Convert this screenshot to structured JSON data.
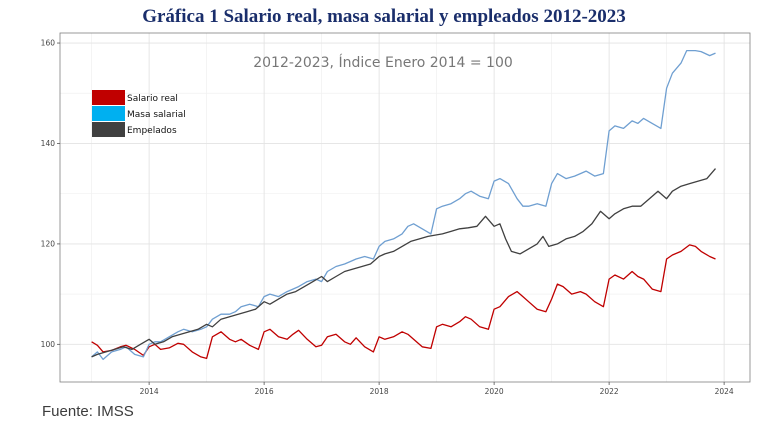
{
  "title": "Gráfica 1 Salario real, masa salarial y empleados 2012-2023",
  "source": "Fuente: IMSS",
  "chart_data": {
    "type": "line",
    "subtitle": "2012-2023, Índice Enero 2014 = 100",
    "xlabel": "",
    "ylabel": "",
    "xlim": [
      2012.45,
      2024.45
    ],
    "ylim": [
      92.5,
      162
    ],
    "x_ticks": [
      2014,
      2016,
      2018,
      2020,
      2022,
      2024
    ],
    "y_ticks": [
      100,
      120,
      140,
      160
    ],
    "grid": true,
    "legend_position": "top-left",
    "series": [
      {
        "name": "Salario real",
        "color": "#c00000",
        "points": [
          [
            2013.0,
            100.5
          ],
          [
            2013.1,
            99.8
          ],
          [
            2013.2,
            98.5
          ],
          [
            2013.35,
            98.8
          ],
          [
            2013.5,
            99.5
          ],
          [
            2013.6,
            99.8
          ],
          [
            2013.75,
            99.0
          ],
          [
            2013.9,
            97.8
          ],
          [
            2014.0,
            99.5
          ],
          [
            2014.1,
            100.0
          ],
          [
            2014.2,
            99.0
          ],
          [
            2014.35,
            99.3
          ],
          [
            2014.5,
            100.2
          ],
          [
            2014.6,
            100.0
          ],
          [
            2014.75,
            98.5
          ],
          [
            2014.9,
            97.5
          ],
          [
            2015.0,
            97.2
          ],
          [
            2015.1,
            101.5
          ],
          [
            2015.25,
            102.5
          ],
          [
            2015.4,
            101.0
          ],
          [
            2015.5,
            100.5
          ],
          [
            2015.6,
            101.0
          ],
          [
            2015.75,
            99.8
          ],
          [
            2015.9,
            99.0
          ],
          [
            2016.0,
            102.5
          ],
          [
            2016.1,
            103.0
          ],
          [
            2016.25,
            101.5
          ],
          [
            2016.4,
            101.0
          ],
          [
            2016.5,
            102.0
          ],
          [
            2016.6,
            102.8
          ],
          [
            2016.75,
            101.0
          ],
          [
            2016.9,
            99.5
          ],
          [
            2017.0,
            99.8
          ],
          [
            2017.1,
            101.5
          ],
          [
            2017.25,
            102.0
          ],
          [
            2017.4,
            100.5
          ],
          [
            2017.5,
            100.0
          ],
          [
            2017.6,
            101.3
          ],
          [
            2017.75,
            99.5
          ],
          [
            2017.9,
            98.5
          ],
          [
            2018.0,
            101.5
          ],
          [
            2018.1,
            101.0
          ],
          [
            2018.25,
            101.5
          ],
          [
            2018.4,
            102.5
          ],
          [
            2018.5,
            102.0
          ],
          [
            2018.6,
            101.0
          ],
          [
            2018.75,
            99.5
          ],
          [
            2018.9,
            99.2
          ],
          [
            2019.0,
            103.5
          ],
          [
            2019.1,
            104.0
          ],
          [
            2019.25,
            103.5
          ],
          [
            2019.4,
            104.5
          ],
          [
            2019.5,
            105.5
          ],
          [
            2019.6,
            105.0
          ],
          [
            2019.75,
            103.5
          ],
          [
            2019.9,
            103.0
          ],
          [
            2020.0,
            107.0
          ],
          [
            2020.1,
            107.5
          ],
          [
            2020.25,
            109.5
          ],
          [
            2020.4,
            110.5
          ],
          [
            2020.5,
            109.5
          ],
          [
            2020.6,
            108.5
          ],
          [
            2020.75,
            107.0
          ],
          [
            2020.9,
            106.5
          ],
          [
            2021.0,
            109.0
          ],
          [
            2021.1,
            112.0
          ],
          [
            2021.2,
            111.5
          ],
          [
            2021.35,
            110.0
          ],
          [
            2021.5,
            110.5
          ],
          [
            2021.6,
            110.0
          ],
          [
            2021.75,
            108.5
          ],
          [
            2021.9,
            107.5
          ],
          [
            2022.0,
            113.0
          ],
          [
            2022.1,
            113.8
          ],
          [
            2022.25,
            113.0
          ],
          [
            2022.4,
            114.5
          ],
          [
            2022.5,
            113.5
          ],
          [
            2022.6,
            113.0
          ],
          [
            2022.75,
            111.0
          ],
          [
            2022.9,
            110.5
          ],
          [
            2023.0,
            117.0
          ],
          [
            2023.1,
            117.8
          ],
          [
            2023.25,
            118.5
          ],
          [
            2023.4,
            119.8
          ],
          [
            2023.5,
            119.5
          ],
          [
            2023.6,
            118.5
          ],
          [
            2023.75,
            117.5
          ],
          [
            2023.85,
            117.0
          ]
        ]
      },
      {
        "name": "Masa salarial",
        "color": "#6f9fd1",
        "points": [
          [
            2013.0,
            97.5
          ],
          [
            2013.1,
            98.5
          ],
          [
            2013.2,
            97.0
          ],
          [
            2013.35,
            98.5
          ],
          [
            2013.5,
            99.0
          ],
          [
            2013.6,
            99.5
          ],
          [
            2013.75,
            98.0
          ],
          [
            2013.9,
            97.5
          ],
          [
            2014.0,
            100.0
          ],
          [
            2014.1,
            100.5
          ],
          [
            2014.2,
            100.5
          ],
          [
            2014.35,
            101.5
          ],
          [
            2014.5,
            102.5
          ],
          [
            2014.6,
            103.0
          ],
          [
            2014.75,
            102.5
          ],
          [
            2014.9,
            103.0
          ],
          [
            2015.0,
            103.5
          ],
          [
            2015.1,
            105.0
          ],
          [
            2015.25,
            106.0
          ],
          [
            2015.4,
            106.0
          ],
          [
            2015.5,
            106.5
          ],
          [
            2015.6,
            107.5
          ],
          [
            2015.75,
            108.0
          ],
          [
            2015.9,
            107.5
          ],
          [
            2016.0,
            109.5
          ],
          [
            2016.1,
            110.0
          ],
          [
            2016.25,
            109.5
          ],
          [
            2016.4,
            110.5
          ],
          [
            2016.5,
            111.0
          ],
          [
            2016.6,
            111.5
          ],
          [
            2016.75,
            112.5
          ],
          [
            2016.9,
            113.0
          ],
          [
            2017.0,
            112.5
          ],
          [
            2017.1,
            114.5
          ],
          [
            2017.25,
            115.5
          ],
          [
            2017.4,
            116.0
          ],
          [
            2017.5,
            116.5
          ],
          [
            2017.6,
            117.0
          ],
          [
            2017.75,
            117.5
          ],
          [
            2017.9,
            117.0
          ],
          [
            2018.0,
            119.5
          ],
          [
            2018.1,
            120.5
          ],
          [
            2018.25,
            121.0
          ],
          [
            2018.4,
            122.0
          ],
          [
            2018.5,
            123.5
          ],
          [
            2018.6,
            124.0
          ],
          [
            2018.75,
            123.0
          ],
          [
            2018.9,
            122.0
          ],
          [
            2019.0,
            127.0
          ],
          [
            2019.1,
            127.5
          ],
          [
            2019.25,
            128.0
          ],
          [
            2019.4,
            129.0
          ],
          [
            2019.5,
            130.0
          ],
          [
            2019.6,
            130.5
          ],
          [
            2019.75,
            129.5
          ],
          [
            2019.9,
            129.0
          ],
          [
            2020.0,
            132.5
          ],
          [
            2020.1,
            133.0
          ],
          [
            2020.25,
            132.0
          ],
          [
            2020.4,
            129.0
          ],
          [
            2020.5,
            127.5
          ],
          [
            2020.6,
            127.5
          ],
          [
            2020.75,
            128.0
          ],
          [
            2020.9,
            127.5
          ],
          [
            2021.0,
            132.0
          ],
          [
            2021.1,
            134.0
          ],
          [
            2021.25,
            133.0
          ],
          [
            2021.4,
            133.5
          ],
          [
            2021.5,
            134.0
          ],
          [
            2021.6,
            134.5
          ],
          [
            2021.75,
            133.5
          ],
          [
            2021.9,
            134.0
          ],
          [
            2022.0,
            142.5
          ],
          [
            2022.1,
            143.5
          ],
          [
            2022.25,
            143.0
          ],
          [
            2022.4,
            144.5
          ],
          [
            2022.5,
            144.0
          ],
          [
            2022.6,
            145.0
          ],
          [
            2022.75,
            144.0
          ],
          [
            2022.9,
            143.0
          ],
          [
            2023.0,
            151.0
          ],
          [
            2023.1,
            154.0
          ],
          [
            2023.25,
            156.0
          ],
          [
            2023.35,
            158.5
          ],
          [
            2023.5,
            158.5
          ],
          [
            2023.6,
            158.3
          ],
          [
            2023.75,
            157.5
          ],
          [
            2023.85,
            158.0
          ]
        ]
      },
      {
        "name": "Empelados",
        "color": "#404040",
        "points": [
          [
            2013.0,
            97.5
          ],
          [
            2013.1,
            98.0
          ],
          [
            2013.25,
            98.5
          ],
          [
            2013.4,
            99.0
          ],
          [
            2013.55,
            99.5
          ],
          [
            2013.7,
            99.0
          ],
          [
            2013.85,
            100.0
          ],
          [
            2014.0,
            101.0
          ],
          [
            2014.1,
            100.0
          ],
          [
            2014.25,
            100.5
          ],
          [
            2014.4,
            101.5
          ],
          [
            2014.55,
            102.0
          ],
          [
            2014.7,
            102.5
          ],
          [
            2014.85,
            103.0
          ],
          [
            2015.0,
            104.0
          ],
          [
            2015.1,
            103.5
          ],
          [
            2015.25,
            105.0
          ],
          [
            2015.4,
            105.5
          ],
          [
            2015.55,
            106.0
          ],
          [
            2015.7,
            106.5
          ],
          [
            2015.85,
            107.0
          ],
          [
            2016.0,
            108.5
          ],
          [
            2016.1,
            108.0
          ],
          [
            2016.25,
            109.0
          ],
          [
            2016.4,
            110.0
          ],
          [
            2016.55,
            110.5
          ],
          [
            2016.7,
            111.5
          ],
          [
            2016.85,
            112.5
          ],
          [
            2017.0,
            113.5
          ],
          [
            2017.1,
            112.5
          ],
          [
            2017.25,
            113.5
          ],
          [
            2017.4,
            114.5
          ],
          [
            2017.55,
            115.0
          ],
          [
            2017.7,
            115.5
          ],
          [
            2017.85,
            116.0
          ],
          [
            2018.0,
            117.5
          ],
          [
            2018.1,
            118.0
          ],
          [
            2018.25,
            118.5
          ],
          [
            2018.4,
            119.5
          ],
          [
            2018.55,
            120.5
          ],
          [
            2018.7,
            121.0
          ],
          [
            2018.85,
            121.5
          ],
          [
            2019.0,
            121.8
          ],
          [
            2019.1,
            122.0
          ],
          [
            2019.25,
            122.5
          ],
          [
            2019.4,
            123.0
          ],
          [
            2019.55,
            123.2
          ],
          [
            2019.7,
            123.5
          ],
          [
            2019.85,
            125.5
          ],
          [
            2020.0,
            123.5
          ],
          [
            2020.1,
            124.0
          ],
          [
            2020.2,
            121.0
          ],
          [
            2020.3,
            118.5
          ],
          [
            2020.45,
            118.0
          ],
          [
            2020.6,
            119.0
          ],
          [
            2020.75,
            120.0
          ],
          [
            2020.85,
            121.5
          ],
          [
            2020.95,
            119.5
          ],
          [
            2021.1,
            120.0
          ],
          [
            2021.25,
            121.0
          ],
          [
            2021.4,
            121.5
          ],
          [
            2021.55,
            122.5
          ],
          [
            2021.7,
            124.0
          ],
          [
            2021.85,
            126.5
          ],
          [
            2022.0,
            125.0
          ],
          [
            2022.1,
            126.0
          ],
          [
            2022.25,
            127.0
          ],
          [
            2022.4,
            127.5
          ],
          [
            2022.55,
            127.5
          ],
          [
            2022.7,
            129.0
          ],
          [
            2022.85,
            130.5
          ],
          [
            2023.0,
            129.0
          ],
          [
            2023.1,
            130.5
          ],
          [
            2023.25,
            131.5
          ],
          [
            2023.4,
            132.0
          ],
          [
            2023.55,
            132.5
          ],
          [
            2023.7,
            133.0
          ],
          [
            2023.85,
            135.0
          ]
        ]
      }
    ]
  }
}
